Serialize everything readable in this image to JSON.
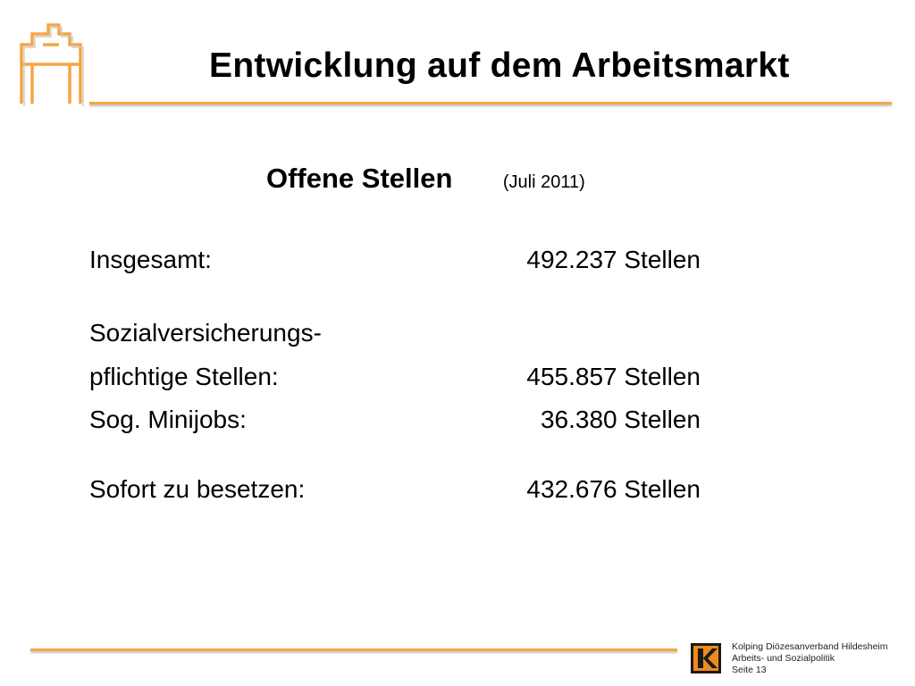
{
  "slide": {
    "title": "Entwicklung auf dem Arbeitsmarkt",
    "subtitle": "Offene Stellen",
    "subtitle_note": "(Juli 2011)"
  },
  "rows": [
    {
      "label": "Insgesamt:",
      "value": "492.237 Stellen"
    },
    {
      "label": "Sozialversicherungs-",
      "value": ""
    },
    {
      "label": "pflichtige Stellen:",
      "value": "455.857 Stellen"
    },
    {
      "label": "Sog. Minijobs:",
      "value": "36.380 Stellen"
    },
    {
      "label": "Sofort zu besetzen:",
      "value": "432.676 Stellen"
    }
  ],
  "footer": {
    "org": "Kolping Diözesanverband Hildesheim",
    "department": "Arbeits- und Sozialpolitik",
    "page": "Seite 13"
  },
  "colors": {
    "accent": "#f5a542",
    "logo_dark": "#1a1a1a",
    "logo_orange": "#f08a1c"
  }
}
